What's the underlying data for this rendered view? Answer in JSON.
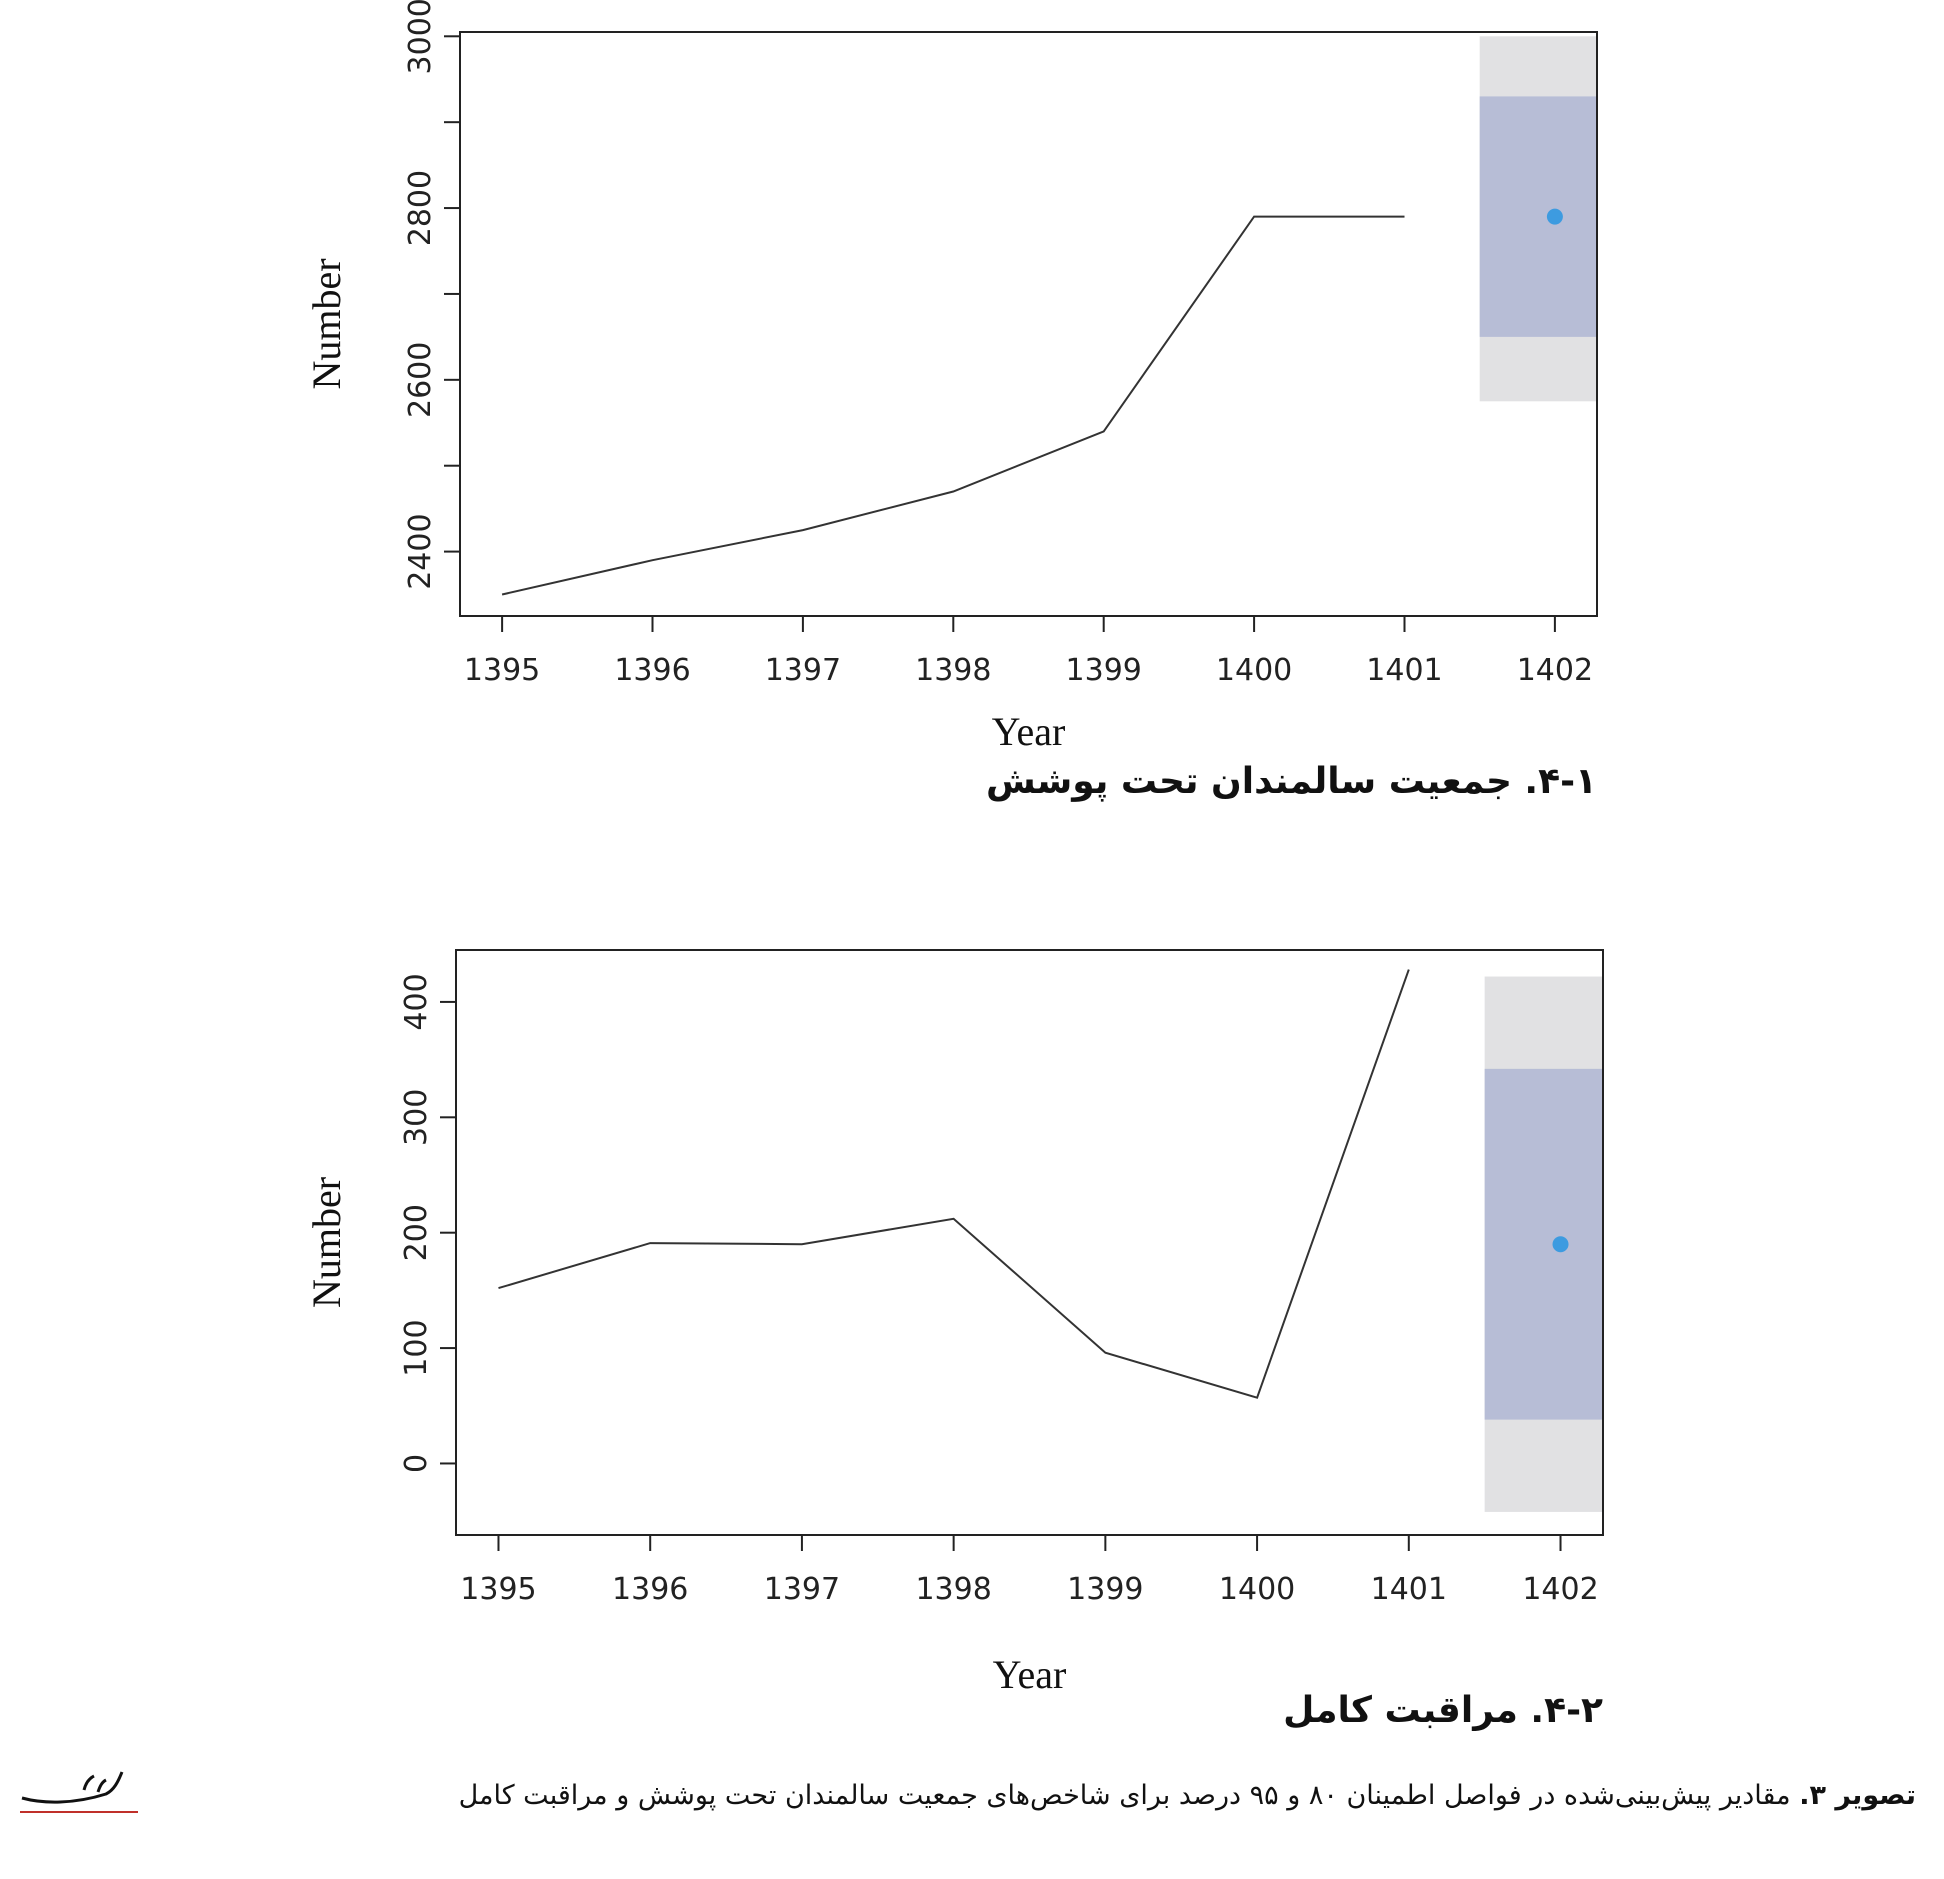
{
  "chart_data": [
    {
      "type": "line",
      "title": "",
      "subcaption": "۴-۱. جمعیت سالمندان تحت پوشش",
      "xlabel": "Year",
      "ylabel": "Number",
      "x": [
        1395,
        1396,
        1397,
        1398,
        1399,
        1400,
        1401
      ],
      "values": [
        2350,
        2390,
        2425,
        2470,
        2540,
        2790,
        2790
      ],
      "xlim": [
        1394.72,
        1402.28
      ],
      "ylim": [
        2325,
        3005
      ],
      "xticks": [
        1395,
        1396,
        1397,
        1398,
        1399,
        1400,
        1401,
        1402
      ],
      "yticks": [
        2400,
        2500,
        2600,
        2700,
        2800,
        2900,
        3000
      ],
      "ytick_labels": [
        2400,
        2600,
        2800,
        3000
      ],
      "forecast": {
        "x": 1402,
        "point": 2790,
        "pi80": [
          2650,
          2930
        ],
        "pi95": [
          2575,
          3000
        ],
        "band_x": [
          1401.5,
          1402.28
        ]
      }
    },
    {
      "type": "line",
      "title": "",
      "subcaption": "۴-۲. مراقبت کامل",
      "xlabel": "Year",
      "ylabel": "Number",
      "x": [
        1395,
        1396,
        1397,
        1398,
        1399,
        1400,
        1401
      ],
      "values": [
        152,
        191,
        190,
        212,
        96,
        57,
        428
      ],
      "xlim": [
        1394.72,
        1402.28
      ],
      "ylim": [
        -62,
        445
      ],
      "xticks": [
        1395,
        1396,
        1397,
        1398,
        1399,
        1400,
        1401,
        1402
      ],
      "yticks": [
        0,
        100,
        200,
        300,
        400
      ],
      "ytick_labels": [
        0,
        100,
        200,
        300,
        400
      ],
      "forecast": {
        "x": 1402,
        "point": 190,
        "pi80": [
          38,
          342
        ],
        "pi95": [
          -42,
          422
        ],
        "band_x": [
          1401.5,
          1402.28
        ]
      }
    }
  ],
  "colors": {
    "pi80": "#b7bdd6",
    "pi95": "#e1e1e3",
    "point": "#3d9be0",
    "line": "#333333",
    "logo": "#c0302a"
  },
  "caption": {
    "label": "تصویر ۳.",
    "text": "مقادیر پیش‌بینی‌شده در فواصل اطمینان ۸۰ و ۹۵ درصد برای شاخص‌های جمعیت سالمندان تحت پوشش و مراقبت کامل"
  },
  "logo": {
    "icon": "salmand-logo-icon",
    "text": "سالمند"
  }
}
